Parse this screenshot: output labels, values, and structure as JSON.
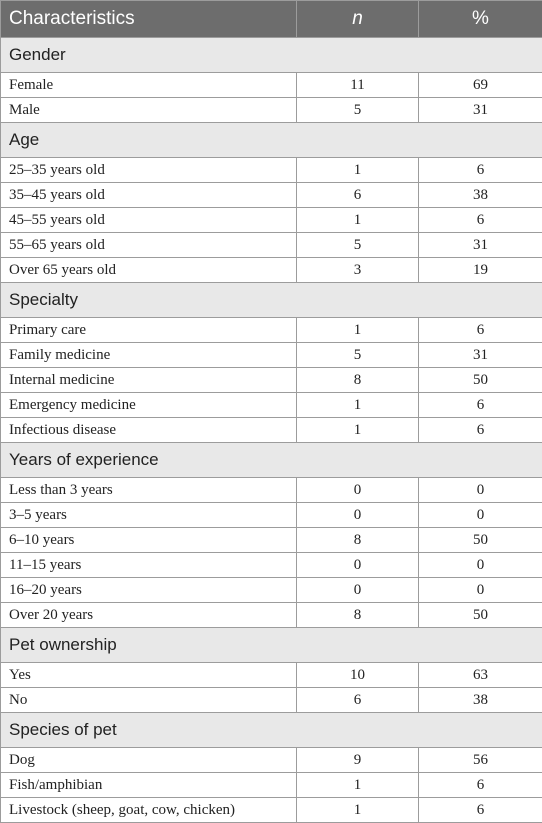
{
  "header": {
    "characteristics": "Characteristics",
    "n": "n",
    "percent": "%"
  },
  "sections": [
    {
      "title": "Gender",
      "rows": [
        {
          "label": "Female",
          "n": "11",
          "percent": "69"
        },
        {
          "label": "Male",
          "n": "5",
          "percent": "31"
        }
      ]
    },
    {
      "title": "Age",
      "rows": [
        {
          "label": "25–35 years old",
          "n": "1",
          "percent": "6"
        },
        {
          "label": "35–45 years old",
          "n": "6",
          "percent": "38"
        },
        {
          "label": "45–55 years old",
          "n": "1",
          "percent": "6"
        },
        {
          "label": "55–65 years old",
          "n": "5",
          "percent": "31"
        },
        {
          "label": "Over 65 years old",
          "n": "3",
          "percent": "19"
        }
      ]
    },
    {
      "title": "Specialty",
      "rows": [
        {
          "label": "Primary care",
          "n": "1",
          "percent": "6"
        },
        {
          "label": "Family medicine",
          "n": "5",
          "percent": "31"
        },
        {
          "label": "Internal medicine",
          "n": "8",
          "percent": "50"
        },
        {
          "label": "Emergency medicine",
          "n": "1",
          "percent": "6"
        },
        {
          "label": "Infectious disease",
          "n": "1",
          "percent": "6"
        }
      ]
    },
    {
      "title": "Years of experience",
      "rows": [
        {
          "label": "Less than 3 years",
          "n": "0",
          "percent": "0"
        },
        {
          "label": "3–5 years",
          "n": "0",
          "percent": "0"
        },
        {
          "label": "6–10 years",
          "n": "8",
          "percent": "50"
        },
        {
          "label": "11–15 years",
          "n": "0",
          "percent": "0"
        },
        {
          "label": "16–20 years",
          "n": "0",
          "percent": "0"
        },
        {
          "label": "Over 20 years",
          "n": "8",
          "percent": "50"
        }
      ]
    },
    {
      "title": "Pet ownership",
      "rows": [
        {
          "label": "Yes",
          "n": "10",
          "percent": "63"
        },
        {
          "label": "No",
          "n": "6",
          "percent": "38"
        }
      ]
    },
    {
      "title": "Species of pet",
      "rows": [
        {
          "label": "Dog",
          "n": "9",
          "percent": "56"
        },
        {
          "label": "Fish/amphibian",
          "n": "1",
          "percent": "6"
        },
        {
          "label": "Livestock (sheep, goat, cow, chicken)",
          "n": "1",
          "percent": "6"
        }
      ]
    }
  ]
}
